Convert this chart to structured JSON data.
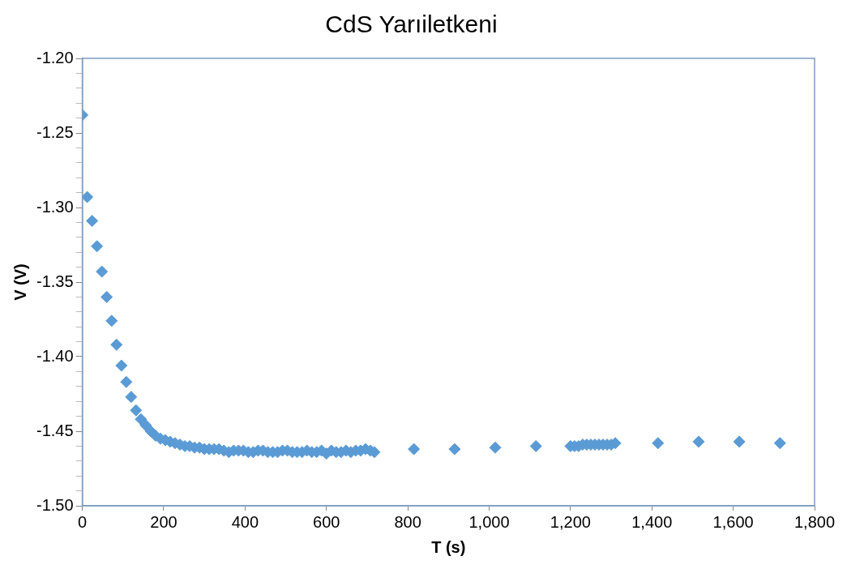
{
  "chart_data": {
    "type": "scatter",
    "title": "CdS Yarıiletkeni",
    "xlabel": "T (s)",
    "ylabel": "V (V)",
    "marker": "diamond",
    "grid": false,
    "legend": false,
    "xlim": [
      0,
      1800
    ],
    "xticks": [
      0,
      200,
      400,
      600,
      800,
      {
        "value": 1000,
        "label": "1,000"
      },
      {
        "value": 1200,
        "label": "1,200"
      },
      {
        "value": 1400,
        "label": "1,400"
      },
      {
        "value": 1600,
        "label": "1,600"
      },
      {
        "value": 1800,
        "label": "1,800"
      }
    ],
    "ylim": [
      -1.5,
      -1.2
    ],
    "yticks": [
      {
        "value": -1.5,
        "label": "-1.50"
      },
      {
        "value": -1.49,
        "label": null
      },
      {
        "value": -1.48,
        "label": null
      },
      {
        "value": -1.47,
        "label": null
      },
      {
        "value": -1.46,
        "label": null
      },
      {
        "value": -1.45,
        "label": "-1.45"
      },
      {
        "value": -1.44,
        "label": null
      },
      {
        "value": -1.43,
        "label": null
      },
      {
        "value": -1.42,
        "label": null
      },
      {
        "value": -1.41,
        "label": null
      },
      {
        "value": -1.4,
        "label": "-1.40"
      },
      {
        "value": -1.39,
        "label": null
      },
      {
        "value": -1.38,
        "label": null
      },
      {
        "value": -1.37,
        "label": null
      },
      {
        "value": -1.36,
        "label": null
      },
      {
        "value": -1.35,
        "label": "-1.35"
      },
      {
        "value": -1.34,
        "label": null
      },
      {
        "value": -1.33,
        "label": null
      },
      {
        "value": -1.32,
        "label": null
      },
      {
        "value": -1.31,
        "label": null
      },
      {
        "value": -1.3,
        "label": "-1.30"
      },
      {
        "value": -1.29,
        "label": null
      },
      {
        "value": -1.28,
        "label": null
      },
      {
        "value": -1.27,
        "label": null
      },
      {
        "value": -1.26,
        "label": null
      },
      {
        "value": -1.25,
        "label": "-1.25"
      },
      {
        "value": -1.24,
        "label": null
      },
      {
        "value": -1.23,
        "label": null
      },
      {
        "value": -1.22,
        "label": null
      },
      {
        "value": -1.21,
        "label": null
      },
      {
        "value": -1.2,
        "label": "-1.20"
      }
    ],
    "series": [
      {
        "color": "#5b9bd5",
        "x": [
          0,
          12,
          24,
          36,
          48,
          60,
          72,
          84,
          96,
          108,
          120,
          132,
          144,
          156,
          168,
          180,
          192,
          204,
          216,
          228,
          240,
          252,
          264,
          276,
          288,
          300,
          312,
          324,
          336,
          348,
          360,
          372,
          384,
          396,
          408,
          420,
          432,
          444,
          456,
          468,
          480,
          492,
          504,
          516,
          528,
          540,
          552,
          564,
          576,
          588,
          600,
          612,
          624,
          636,
          648,
          660,
          672,
          684,
          696,
          708,
          718,
          815,
          915,
          1015,
          1115,
          1200,
          1210,
          1220,
          1230,
          1240,
          1250,
          1260,
          1270,
          1280,
          1290,
          1300,
          1310,
          1415,
          1515,
          1615,
          1715
        ],
        "values": [
          -1.238,
          -1.293,
          -1.309,
          -1.326,
          -1.343,
          -1.36,
          -1.376,
          -1.392,
          -1.406,
          -1.417,
          -1.427,
          -1.436,
          -1.442,
          -1.446,
          -1.45,
          -1.453,
          -1.455,
          -1.456,
          -1.457,
          -1.458,
          -1.459,
          -1.46,
          -1.46,
          -1.461,
          -1.461,
          -1.462,
          -1.462,
          -1.462,
          -1.462,
          -1.463,
          -1.464,
          -1.463,
          -1.463,
          -1.463,
          -1.464,
          -1.464,
          -1.463,
          -1.463,
          -1.464,
          -1.464,
          -1.464,
          -1.463,
          -1.463,
          -1.464,
          -1.464,
          -1.464,
          -1.463,
          -1.464,
          -1.464,
          -1.463,
          -1.465,
          -1.463,
          -1.464,
          -1.464,
          -1.463,
          -1.464,
          -1.463,
          -1.463,
          -1.462,
          -1.463,
          -1.464,
          -1.462,
          -1.462,
          -1.461,
          -1.46,
          -1.46,
          -1.46,
          -1.46,
          -1.459,
          -1.459,
          -1.459,
          -1.459,
          -1.459,
          -1.459,
          -1.459,
          -1.459,
          -1.458,
          -1.458,
          -1.457,
          -1.457,
          -1.458
        ]
      }
    ]
  }
}
